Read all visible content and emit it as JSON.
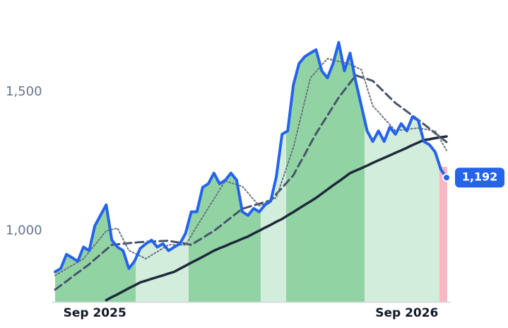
{
  "chart_data": {
    "type": "line",
    "categories": [
      null,
      null,
      null,
      null,
      null,
      null,
      null,
      "Sep 2025",
      null,
      null,
      null,
      null,
      null,
      null,
      null,
      null,
      null,
      null,
      null,
      null,
      null,
      null,
      null,
      null,
      null,
      null,
      null,
      null,
      null,
      null,
      null,
      null,
      null,
      null,
      null,
      null,
      null,
      null,
      null,
      null,
      null,
      null,
      null,
      null,
      null,
      null,
      null,
      null,
      null,
      null,
      null,
      null,
      null,
      null,
      null,
      null,
      null,
      null,
      null,
      null,
      null,
      null,
      "Sep 2026",
      null,
      null,
      null,
      null,
      null,
      null,
      null
    ],
    "ylim": [
      745,
      1780
    ],
    "yticks": [
      {
        "value": 1000,
        "label": "1,000"
      },
      {
        "value": 1500,
        "label": "1,500"
      }
    ],
    "series": [
      {
        "color": "#1e293b",
        "line_style": "solid",
        "values": [
          null,
          null,
          null,
          null,
          null,
          null,
          null,
          null,
          null,
          751,
          762,
          772,
          783,
          794,
          804,
          815,
          821,
          828,
          834,
          840,
          847,
          853,
          864,
          875,
          886,
          896,
          907,
          918,
          929,
          938,
          946,
          955,
          963,
          972,
          980,
          991,
          1001,
          1012,
          1022,
          1033,
          1043,
          1056,
          1068,
          1081,
          1094,
          1106,
          1119,
          1134,
          1149,
          1164,
          1178,
          1193,
          1208,
          1217,
          1226,
          1235,
          1245,
          1254,
          1263,
          1272,
          1281,
          1290,
          1299,
          1309,
          1318,
          1327,
          1330,
          1334,
          1337,
          1340
        ]
      },
      {
        "color": "#475569",
        "line_style": "dashed",
        "values": [
          789,
          804,
          819,
          835,
          850,
          865,
          880,
          898,
          915,
          933,
          950,
          952,
          954,
          956,
          958,
          960,
          961,
          962,
          963,
          964,
          965,
          961,
          958,
          954,
          950,
          963,
          975,
          988,
          1000,
          1016,
          1032,
          1048,
          1064,
          1080,
          1086,
          1092,
          1098,
          1104,
          1110,
          1133,
          1155,
          1178,
          1200,
          1238,
          1275,
          1313,
          1350,
          1383,
          1415,
          1448,
          1480,
          1507,
          1533,
          1560,
          1553,
          1547,
          1540,
          1520,
          1500,
          1480,
          1460,
          1445,
          1430,
          1415,
          1400,
          1384,
          1368,
          1352,
          1336,
          1320
        ]
      },
      {
        "color": "#6b7280",
        "line_style": "dotted",
        "values": [
          840,
          852,
          864,
          876,
          888,
          900,
          925,
          950,
          975,
          1000,
          1005,
          1010,
          970,
          930,
          920,
          910,
          900,
          913,
          925,
          938,
          950,
          950,
          950,
          950,
          983,
          1017,
          1050,
          1083,
          1115,
          1148,
          1180,
          1173,
          1167,
          1160,
          1137,
          1113,
          1090,
          1100,
          1110,
          1120,
          1180,
          1240,
          1300,
          1383,
          1467,
          1550,
          1573,
          1597,
          1620,
          1615,
          1610,
          1605,
          1600,
          1590,
          1580,
          1515,
          1450,
          1428,
          1405,
          1383,
          1360,
          1363,
          1365,
          1368,
          1370,
          1367,
          1363,
          1360,
          1325,
          1290
        ]
      },
      {
        "color": "#2563eb",
        "line_style": "solid",
        "area": true,
        "values": [
          853,
          865,
          916,
          904,
          891,
          942,
          929,
          1018,
          1056,
          1094,
          967,
          942,
          929,
          865,
          891,
          937,
          954,
          967,
          942,
          954,
          929,
          942,
          954,
          992,
          1069,
          1069,
          1157,
          1170,
          1208,
          1170,
          1183,
          1208,
          1183,
          1069,
          1056,
          1081,
          1069,
          1094,
          1107,
          1195,
          1348,
          1360,
          1525,
          1602,
          1627,
          1640,
          1652,
          1576,
          1551,
          1602,
          1678,
          1576,
          1640,
          1538,
          1449,
          1360,
          1322,
          1360,
          1322,
          1373,
          1348,
          1386,
          1360,
          1411,
          1398,
          1322,
          1310,
          1284,
          1221,
          1192
        ],
        "value_labels": [
          null,
          null,
          null,
          null,
          null,
          null,
          null,
          null,
          null,
          null,
          null,
          null,
          null,
          null,
          null,
          null,
          null,
          null,
          null,
          null,
          null,
          null,
          null,
          null,
          null,
          null,
          null,
          null,
          null,
          null,
          null,
          null,
          null,
          null,
          null,
          null,
          null,
          null,
          null,
          null,
          null,
          null,
          null,
          null,
          null,
          null,
          null,
          null,
          null,
          null,
          null,
          null,
          null,
          null,
          null,
          null,
          null,
          null,
          null,
          null,
          null,
          null,
          null,
          null,
          null,
          null,
          null,
          null,
          null,
          "1,192"
        ]
      }
    ]
  }
}
